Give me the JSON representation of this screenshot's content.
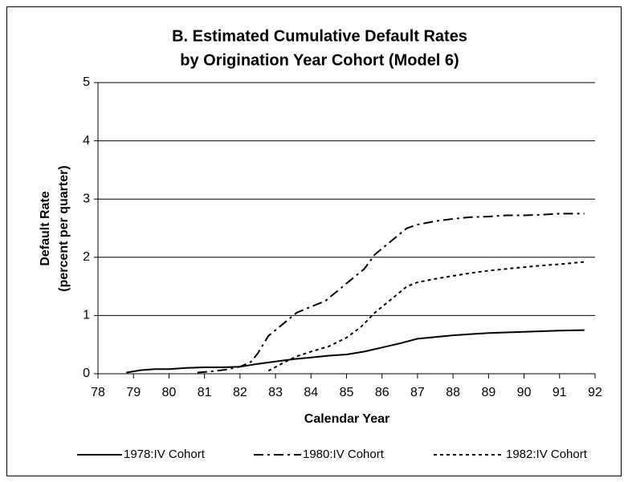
{
  "chart_data": {
    "type": "line",
    "title": [
      "B. Estimated Cumulative Default Rates",
      "by Origination Year Cohort (Model 6)"
    ],
    "ylabel": [
      "Default Rate",
      "(percent per quarter)"
    ],
    "xlabel": "Calendar Year",
    "xlim": [
      78,
      92
    ],
    "xticks": [
      78,
      79,
      80,
      81,
      82,
      83,
      84,
      85,
      86,
      87,
      88,
      89,
      90,
      91,
      92
    ],
    "ylim": [
      0,
      5
    ],
    "yticks": [
      0,
      1,
      2,
      3,
      4,
      5
    ],
    "grid": true,
    "legend": "bottom",
    "series": [
      {
        "name": "1978:IV Cohort",
        "color": "#000000",
        "dash": "solid",
        "x": [
          78.8,
          79.2,
          79.6,
          80,
          80.5,
          81,
          81.5,
          82,
          82.5,
          83,
          83.5,
          84,
          84.5,
          85,
          85.5,
          86,
          86.5,
          87,
          87.5,
          88,
          88.5,
          89,
          89.5,
          90,
          90.5,
          91,
          91.7
        ],
        "values": [
          0.02,
          0.06,
          0.08,
          0.08,
          0.1,
          0.11,
          0.11,
          0.12,
          0.17,
          0.21,
          0.25,
          0.28,
          0.31,
          0.33,
          0.38,
          0.45,
          0.52,
          0.6,
          0.63,
          0.66,
          0.68,
          0.7,
          0.71,
          0.72,
          0.73,
          0.74,
          0.75
        ]
      },
      {
        "name": "1980:IV Cohort",
        "color": "#000000",
        "dash": "dashdot",
        "x": [
          80.8,
          81.2,
          81.6,
          82,
          82.3,
          82.5,
          82.8,
          83,
          83.3,
          83.6,
          84,
          84.4,
          84.8,
          85.2,
          85.5,
          85.8,
          86,
          86.3,
          86.7,
          87,
          87.5,
          88,
          88.5,
          89,
          89.5,
          90,
          90.5,
          91,
          91.7
        ],
        "values": [
          0.02,
          0.04,
          0.07,
          0.12,
          0.2,
          0.35,
          0.65,
          0.75,
          0.9,
          1.05,
          1.15,
          1.25,
          1.45,
          1.65,
          1.8,
          2.05,
          2.15,
          2.3,
          2.5,
          2.56,
          2.62,
          2.66,
          2.69,
          2.7,
          2.72,
          2.72,
          2.73,
          2.75,
          2.75
        ]
      },
      {
        "name": "1982:IV Cohort",
        "color": "#000000",
        "dash": "dotted",
        "x": [
          82.8,
          83.2,
          83.6,
          84,
          84.5,
          85,
          85.4,
          85.8,
          86.2,
          86.7,
          87,
          87.5,
          88,
          88.5,
          89,
          89.5,
          90,
          90.5,
          91,
          91.7
        ],
        "values": [
          0.05,
          0.18,
          0.3,
          0.38,
          0.47,
          0.62,
          0.8,
          1.05,
          1.25,
          1.5,
          1.57,
          1.63,
          1.68,
          1.73,
          1.77,
          1.8,
          1.83,
          1.86,
          1.88,
          1.92
        ]
      }
    ]
  }
}
